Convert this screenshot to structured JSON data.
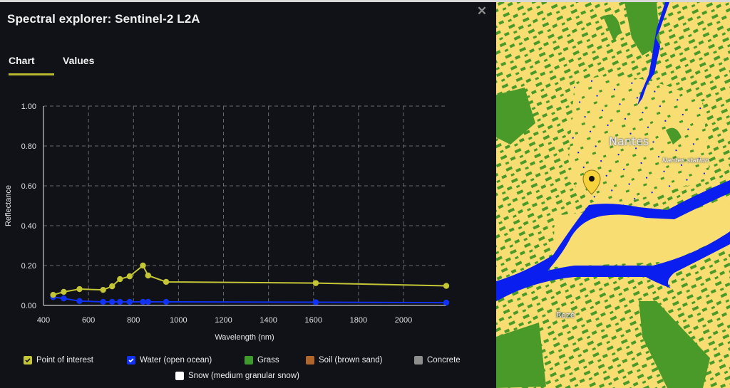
{
  "window": {
    "title": "Spectral explorer: Sentinel-2 L2A",
    "close_glyph": "✕"
  },
  "tabs": [
    {
      "label": "Chart",
      "active": true
    },
    {
      "label": "Values",
      "active": false
    }
  ],
  "colors": {
    "accent": "#b7b92e",
    "poi": "#c4c636",
    "water": "#1232f2",
    "grass": "#3e9a2a",
    "soil": "#b0652a",
    "concrete": "#8e8e8e",
    "snow": "#ffffff",
    "map_land": "#f7dd72",
    "map_veg": "#4a9a2a",
    "map_water": "#0a1ef0"
  },
  "chart_data": {
    "type": "line",
    "title": "",
    "xlabel": "Wavelength (nm)",
    "ylabel": "Reflectance",
    "xlim": [
      400,
      2190
    ],
    "ylim": [
      0,
      1.0
    ],
    "x_ticks": [
      "400",
      "600",
      "800",
      "1000",
      "1200",
      "1400",
      "1600",
      "1800",
      "2000"
    ],
    "y_ticks": [
      "0.00",
      "0.20",
      "0.40",
      "0.60",
      "0.80",
      "1.00"
    ],
    "grid": true,
    "legend_position": "bottom",
    "x": [
      443,
      490,
      560,
      665,
      705,
      740,
      783,
      842,
      865,
      945,
      1610,
      2190
    ],
    "series": [
      {
        "name": "Point of interest",
        "visible": true,
        "values": [
          0.053,
          0.068,
          0.082,
          0.078,
          0.096,
          0.132,
          0.146,
          0.2,
          0.15,
          0.118,
          0.112,
          0.098
        ]
      },
      {
        "name": "Water (open ocean)",
        "visible": true,
        "values": [
          0.042,
          0.035,
          0.022,
          0.018,
          0.018,
          0.018,
          0.018,
          0.018,
          0.018,
          0.018,
          0.016,
          0.014
        ]
      },
      {
        "name": "Grass",
        "visible": false,
        "values": []
      },
      {
        "name": "Soil (brown sand)",
        "visible": false,
        "values": []
      },
      {
        "name": "Concrete",
        "visible": false,
        "values": []
      },
      {
        "name": "Snow (medium granular snow)",
        "visible": false,
        "values": []
      }
    ]
  },
  "legend": [
    {
      "label": "Point of interest",
      "checked": true
    },
    {
      "label": "Water (open ocean)",
      "checked": true
    },
    {
      "label": "Grass",
      "checked": false
    },
    {
      "label": "Soil (brown sand)",
      "checked": false
    },
    {
      "label": "Concrete",
      "checked": false
    },
    {
      "label": "Snow (medium granular snow)",
      "checked": false
    }
  ],
  "map": {
    "labels": {
      "city": "Nantes",
      "station": "Nantes station",
      "suburb": "Rezé"
    }
  }
}
